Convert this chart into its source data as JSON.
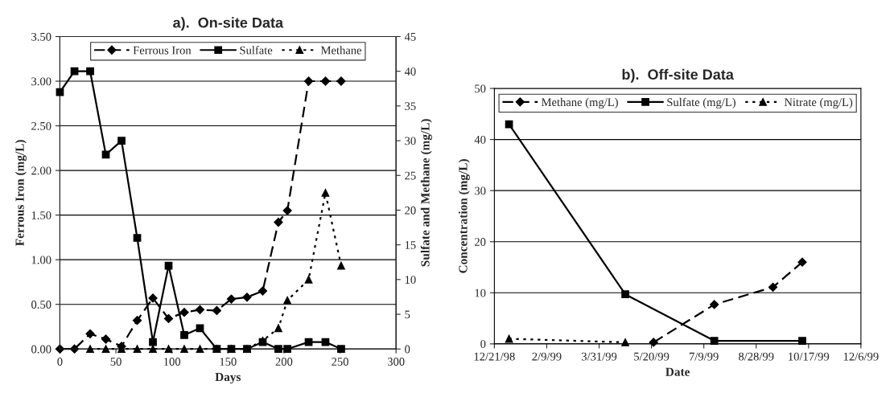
{
  "chart_data": [
    {
      "type": "line",
      "title": "a).  On-site Data",
      "xlabel": "Days",
      "ylabel": "Ferrous Iron (mg/L)",
      "y2label": "Sulfate and Methane (mg/L)",
      "x": [
        0,
        13,
        27,
        41,
        55,
        69,
        83,
        97,
        111,
        125,
        140,
        153,
        167,
        181,
        195,
        203,
        222,
        237,
        251
      ],
      "series": [
        {
          "name": "Ferrous Iron",
          "color": "#000000",
          "marker": "diamond",
          "line_style": "dashed",
          "values": [
            0,
            0,
            0.17,
            0.11,
            0.03,
            0.32,
            0.57,
            0.34,
            0.41,
            0.44,
            0.43,
            0.56,
            0.58,
            0.65,
            1.42,
            1.55,
            3.0,
            3.0,
            3.0
          ]
        },
        {
          "name": "Sulfate",
          "color": "#000000",
          "marker": "square",
          "line_style": "solid",
          "axis": "y2",
          "values": [
            37,
            40,
            40,
            28,
            30,
            16,
            1,
            12,
            2,
            3,
            0,
            0,
            0,
            1,
            0,
            0,
            1,
            1,
            0
          ]
        },
        {
          "name": "Methane",
          "color": "#000000",
          "marker": "triangle",
          "line_style": "dotted",
          "axis": "y2",
          "x": [
            27,
            41,
            55,
            69,
            83,
            97,
            111,
            125,
            140,
            153,
            167,
            181,
            195,
            203,
            222,
            237,
            251
          ],
          "values": [
            0,
            0,
            0,
            0,
            0,
            0,
            0,
            0,
            0,
            0,
            0,
            1.2,
            3,
            7,
            10,
            22.5,
            12
          ]
        }
      ],
      "xlim": [
        0,
        300
      ],
      "xticks": [
        0,
        50,
        100,
        150,
        200,
        250,
        300
      ],
      "ylim": [
        0,
        3.5
      ],
      "yticks": [
        {
          "value": 0,
          "label": "0.00"
        },
        {
          "value": 0.5,
          "label": "0.50"
        },
        {
          "value": 1,
          "label": "1.00"
        },
        {
          "value": 1.5,
          "label": "1.50"
        },
        {
          "value": 2,
          "label": "2.00"
        },
        {
          "value": 2.5,
          "label": "2.50"
        },
        {
          "value": 3,
          "label": "3.00"
        },
        {
          "value": 3.5,
          "label": "3.50"
        }
      ],
      "y2lim": [
        0,
        45
      ],
      "y2ticks": [
        0,
        5,
        10,
        15,
        20,
        25,
        30,
        35,
        40,
        45
      ],
      "grid": "y",
      "legend": "top"
    },
    {
      "type": "line",
      "title": "b).  Off-site Data",
      "xlabel": "Date",
      "ylabel": "Concentration (mg/L)",
      "series": [
        {
          "name": "Methane (mg/L)",
          "color": "#000000",
          "marker": "diamond",
          "line_style": "dashed",
          "x": [
            "1999-05-22",
            "1999-07-19",
            "1999-09-13",
            "1999-10-11"
          ],
          "values": [
            0.3,
            7.7,
            11.1,
            16.0
          ]
        },
        {
          "name": "Sulfate (mg/L)",
          "color": "#000000",
          "marker": "square",
          "line_style": "solid",
          "x": [
            "1999-01-04",
            "1999-04-25",
            "1999-07-19",
            "1999-10-11"
          ],
          "values": [
            43,
            9.7,
            0.6,
            0.6
          ]
        },
        {
          "name": "Nitrate (mg/L)",
          "color": "#000000",
          "marker": "triangle",
          "line_style": "dotted",
          "x": [
            "1999-01-04",
            "1999-04-25"
          ],
          "values": [
            1.0,
            0.3
          ]
        }
      ],
      "xlim": [
        "1998-12-21",
        "1999-12-06"
      ],
      "xticks": [
        {
          "value": "1998-12-21",
          "label": "12/21/98"
        },
        {
          "value": "1999-02-09",
          "label": "2/9/99"
        },
        {
          "value": "1999-03-31",
          "label": "3/31/99"
        },
        {
          "value": "1999-05-20",
          "label": "5/20/99"
        },
        {
          "value": "1999-07-09",
          "label": "7/9/99"
        },
        {
          "value": "1999-08-28",
          "label": "8/28/99"
        },
        {
          "value": "1999-10-17",
          "label": "10/17/99"
        },
        {
          "value": "1999-12-06",
          "label": "12/6/99"
        }
      ],
      "ylim": [
        0,
        50
      ],
      "yticks": [
        0,
        10,
        20,
        30,
        40,
        50
      ],
      "grid": "y",
      "legend": "top"
    }
  ]
}
